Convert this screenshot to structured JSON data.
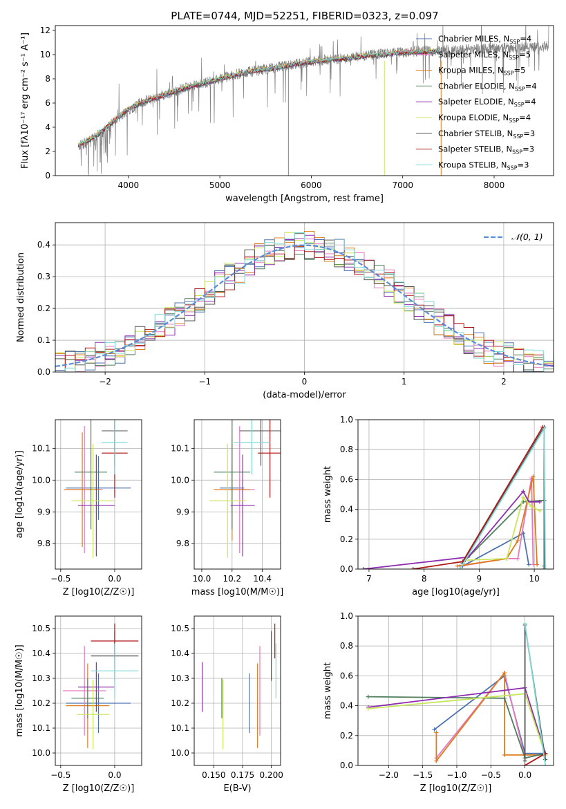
{
  "figure_title": "PLATE=0744, MJD=52251, FIBERID=0323, z=0.097",
  "colors": {
    "Chabrier MILES": "#4C72B0",
    "Salpeter MILES": "#e377c2",
    "Kroupa MILES": "#E07B1A",
    "Chabrier ELODIE": "#4F7F5A",
    "Salpeter ELODIE": "#8E2DB0",
    "Kroupa ELODIE": "#C8E65A",
    "Chabrier STELIB": "#555555",
    "Salpeter STELIB": "#B01818",
    "Kroupa STELIB": "#7FD9D5"
  },
  "chart_data": [
    {
      "id": "spectrum",
      "type": "line",
      "title": "PLATE=0744, MJD=52251, FIBERID=0323, z=0.097",
      "xlabel": "wavelength [Angstrom, rest frame]",
      "ylabel": "Flux [fλ10⁻¹⁷ erg cm⁻² s⁻¹ A⁻¹]",
      "xlim": [
        3200,
        8650
      ],
      "ylim": [
        0,
        12.4
      ],
      "xticks": [
        4000,
        5000,
        6000,
        7000,
        8000
      ],
      "yticks": [
        0,
        2,
        4,
        6,
        8,
        10,
        12
      ],
      "legend": [
        "Chabrier MILES, N_SSP=4",
        "Salpeter MILES, N_SSP=5",
        "Kroupa MILES, N_SSP=5",
        "Chabrier ELODIE, N_SSP=4",
        "Salpeter ELODIE, N_SSP=4",
        "Kroupa ELODIE, N_SSP=4",
        "Chabrier STELIB, N_SSP=3",
        "Salpeter STELIB, N_SSP=3",
        "Kroupa STELIB, N_SSP=3"
      ],
      "legend_loc": "right",
      "data_curve": {
        "x": [
          3450,
          3500,
          3600,
          3700,
          3800,
          3900,
          4000,
          4100,
          4200,
          4400,
          4600,
          4800,
          5000,
          5200,
          5400,
          5600,
          5800,
          6000,
          6200,
          6400,
          6600,
          6800,
          7000,
          7200,
          7400,
          7600,
          7800,
          8000,
          8200,
          8400,
          8600
        ],
        "y": [
          2.4,
          2.6,
          3.0,
          3.5,
          4.2,
          4.8,
          5.4,
          5.9,
          6.2,
          6.7,
          7.2,
          7.6,
          8.0,
          8.4,
          8.7,
          8.9,
          9.2,
          9.4,
          9.6,
          9.7,
          9.9,
          10.1,
          10.2,
          10.3,
          10.3,
          10.4,
          10.5,
          10.5,
          10.6,
          10.6,
          10.7
        ]
      },
      "model_curve": {
        "x": [
          3450,
          3500,
          3600,
          3700,
          3800,
          3900,
          4000,
          4100,
          4200,
          4400,
          4600,
          4800,
          5000,
          5200,
          5400,
          5600,
          5800,
          6000,
          6200,
          6400,
          6600,
          6800,
          7000,
          7200,
          7400
        ],
        "y": [
          2.5,
          2.7,
          3.1,
          3.6,
          4.3,
          4.9,
          5.5,
          5.9,
          6.2,
          6.7,
          7.2,
          7.6,
          8.0,
          8.4,
          8.7,
          8.9,
          9.2,
          9.4,
          9.6,
          9.7,
          9.9,
          10.0,
          10.2,
          10.2,
          10.3
        ]
      }
    },
    {
      "id": "residuals",
      "type": "line",
      "xlabel": "(data-model)/error",
      "ylabel": "Normed distribution",
      "xlim": [
        -2.5,
        2.5
      ],
      "ylim": [
        0,
        0.47
      ],
      "xticks": [
        -2,
        -1,
        0,
        1,
        2
      ],
      "yticks": [
        0.0,
        0.1,
        0.2,
        0.3,
        0.4
      ],
      "legend": [
        "N(0,1)"
      ],
      "legend_loc": "top-right",
      "bin_width": 0.1
    },
    {
      "id": "age_vs_Z",
      "type": "scatter",
      "xlabel": "Z [log10(Z/Z☉)]",
      "ylabel": "age  [log10(age/yr)]",
      "xlim": [
        -0.55,
        0.25
      ],
      "ylim": [
        9.72,
        10.19
      ],
      "xticks": [
        -0.5,
        0.0
      ],
      "yticks": [
        9.8,
        9.9,
        10.0,
        10.1
      ],
      "points": [
        {
          "model": "Chabrier MILES",
          "x": -0.15,
          "xerr": 0.3,
          "y": 9.975,
          "yerr": 0.1
        },
        {
          "model": "Salpeter MILES",
          "x": -0.28,
          "xerr": 0.17,
          "y": 9.97,
          "yerr": 0.2
        },
        {
          "model": "Kroupa MILES",
          "x": -0.3,
          "xerr": 0.17,
          "y": 9.97,
          "yerr": 0.18
        },
        {
          "model": "Chabrier ELODIE",
          "x": -0.22,
          "xerr": 0.15,
          "y": 10.025,
          "yerr": 0.18
        },
        {
          "model": "Salpeter ELODIE",
          "x": -0.17,
          "xerr": 0.17,
          "y": 9.92,
          "yerr": 0.16
        },
        {
          "model": "Kroupa ELODIE",
          "x": -0.2,
          "xerr": 0.2,
          "y": 9.935,
          "yerr": 0.18
        },
        {
          "model": "Chabrier STELIB",
          "x": 0.0,
          "xerr": 0.12,
          "y": 10.155,
          "yerr": 0.11
        },
        {
          "model": "Salpeter STELIB",
          "x": 0.0,
          "xerr": 0.12,
          "y": 10.085,
          "yerr": 0.14
        },
        {
          "model": "Kroupa STELIB",
          "x": 0.0,
          "xerr": 0.12,
          "y": 10.118,
          "yerr": 0.1
        }
      ]
    },
    {
      "id": "age_vs_mass",
      "type": "scatter",
      "xlabel": "mass [log10(M/M☉)]",
      "ylabel": "",
      "xlim": [
        9.95,
        10.52
      ],
      "ylim": [
        9.72,
        10.19
      ],
      "xticks": [
        10.0,
        10.2,
        10.4
      ],
      "yticks": [
        9.8,
        9.9,
        10.0,
        10.1
      ],
      "points": [
        {
          "model": "Chabrier MILES",
          "x": 10.2,
          "xerr": 0.08,
          "y": 9.975,
          "yerr": 0.08
        },
        {
          "model": "Salpeter MILES",
          "x": 10.25,
          "xerr": 0.1,
          "y": 9.97,
          "yerr": 0.2
        },
        {
          "model": "Kroupa MILES",
          "x": 10.2,
          "xerr": 0.12,
          "y": 9.97,
          "yerr": 0.16
        },
        {
          "model": "Chabrier ELODIE",
          "x": 10.2,
          "xerr": 0.12,
          "y": 10.025,
          "yerr": 0.18
        },
        {
          "model": "Salpeter ELODIE",
          "x": 10.27,
          "xerr": 0.08,
          "y": 9.92,
          "yerr": 0.16
        },
        {
          "model": "Kroupa ELODIE",
          "x": 10.17,
          "xerr": 0.12,
          "y": 9.935,
          "yerr": 0.18
        },
        {
          "model": "Chabrier STELIB",
          "x": 10.39,
          "xerr": 0.14,
          "y": 10.155,
          "yerr": 0.11
        },
        {
          "model": "Salpeter STELIB",
          "x": 10.45,
          "xerr": 0.08,
          "y": 10.085,
          "yerr": 0.14
        },
        {
          "model": "Kroupa STELIB",
          "x": 10.33,
          "xerr": 0.12,
          "y": 10.118,
          "yerr": 0.1
        }
      ]
    },
    {
      "id": "weight_vs_age",
      "type": "line",
      "xlabel": "age  [log10(age/yr)]",
      "ylabel": "mass weight",
      "xlim": [
        6.8,
        10.35
      ],
      "ylim": [
        0,
        1.0
      ],
      "xticks": [
        7,
        8,
        9,
        10
      ],
      "yticks": [
        0.0,
        0.2,
        0.4,
        0.6,
        0.8,
        1.0
      ],
      "series": [
        {
          "model": "Chabrier MILES",
          "x": [
            8.7,
            9.8,
            9.9
          ],
          "y": [
            0.02,
            0.24,
            0.03
          ]
        },
        {
          "model": "Salpeter MILES",
          "x": [
            8.65,
            9.5,
            9.7,
            9.95,
            9.98
          ],
          "y": [
            0.02,
            0.07,
            0.07,
            0.61,
            0.03
          ]
        },
        {
          "model": "Kroupa MILES",
          "x": [
            8.6,
            9.5,
            9.7,
            9.98,
            10.05
          ],
          "y": [
            0.02,
            0.07,
            0.19,
            0.62,
            0.03
          ]
        },
        {
          "model": "Chabrier ELODIE",
          "x": [
            8.75,
            9.8,
            10.18,
            10.18
          ],
          "y": [
            0.06,
            0.45,
            0.46,
            0.02
          ]
        },
        {
          "model": "Salpeter ELODIE",
          "x": [
            6.9,
            8.8,
            9.8,
            9.9,
            10.1
          ],
          "y": [
            0.0,
            0.08,
            0.52,
            0.45,
            0.45
          ]
        },
        {
          "model": "Kroupa ELODIE",
          "x": [
            8.8,
            9.5,
            9.8,
            9.95,
            10.1
          ],
          "y": [
            0.06,
            0.07,
            0.48,
            0.42,
            0.39
          ]
        },
        {
          "model": "Chabrier STELIB",
          "x": [
            8.7,
            10.18,
            10.18
          ],
          "y": [
            0.04,
            0.95,
            0.0
          ]
        },
        {
          "model": "Salpeter STELIB",
          "x": [
            7.8,
            8.7,
            10.15
          ],
          "y": [
            0.0,
            0.05,
            0.95
          ]
        },
        {
          "model": "Kroupa STELIB",
          "x": [
            8.65,
            10.18,
            10.2
          ],
          "y": [
            0.0,
            0.94,
            0.0
          ]
        }
      ]
    },
    {
      "id": "mass_vs_Z",
      "type": "scatter",
      "xlabel": "Z [log10(Z/Z☉)]",
      "ylabel": "mass [log10(M/M☉)]",
      "xlim": [
        -0.55,
        0.25
      ],
      "ylim": [
        9.95,
        10.55
      ],
      "xticks": [
        -0.5,
        0.0
      ],
      "yticks": [
        10.0,
        10.1,
        10.2,
        10.3,
        10.4,
        10.5
      ],
      "points": [
        {
          "model": "Chabrier MILES",
          "x": -0.15,
          "xerr": 0.3,
          "y": 10.2,
          "yerr": 0.12
        },
        {
          "model": "Salpeter MILES",
          "x": -0.28,
          "xerr": 0.2,
          "y": 10.25,
          "yerr": 0.18
        },
        {
          "model": "Kroupa MILES",
          "x": -0.25,
          "xerr": 0.2,
          "y": 10.19,
          "yerr": 0.17
        },
        {
          "model": "Chabrier ELODIE",
          "x": -0.25,
          "xerr": 0.15,
          "y": 10.22,
          "yerr": 0.08
        },
        {
          "model": "Salpeter ELODIE",
          "x": -0.17,
          "xerr": 0.17,
          "y": 10.265,
          "yerr": 0.1
        },
        {
          "model": "Kroupa ELODIE",
          "x": -0.2,
          "xerr": 0.15,
          "y": 10.155,
          "yerr": 0.14
        },
        {
          "model": "Chabrier STELIB",
          "x": 0.0,
          "xerr": 0.22,
          "y": 10.39,
          "yerr": 0.1
        },
        {
          "model": "Salpeter STELIB",
          "x": 0.0,
          "xerr": 0.22,
          "y": 10.45,
          "yerr": 0.07
        },
        {
          "model": "Kroupa STELIB",
          "x": 0.0,
          "xerr": 0.22,
          "y": 10.33,
          "yerr": 0.11
        }
      ]
    },
    {
      "id": "mass_vs_EBV",
      "type": "scatter",
      "xlabel": "E(B-V)",
      "ylabel": "",
      "xlim": [
        0.133,
        0.208
      ],
      "ylim": [
        9.95,
        10.55
      ],
      "xticks": [
        0.15,
        0.175,
        0.2
      ],
      "yticks": [
        10.0,
        10.1,
        10.2,
        10.3,
        10.4,
        10.5
      ],
      "points": [
        {
          "model": "Chabrier MILES",
          "x": 0.181,
          "y": 10.2,
          "yerr": 0.12
        },
        {
          "model": "Salpeter MILES",
          "x": 0.19,
          "y": 10.25,
          "yerr": 0.18
        },
        {
          "model": "Kroupa MILES",
          "x": 0.188,
          "y": 10.19,
          "yerr": 0.17
        },
        {
          "model": "Chabrier ELODIE",
          "x": 0.157,
          "y": 10.22,
          "yerr": 0.08
        },
        {
          "model": "Salpeter ELODIE",
          "x": 0.14,
          "y": 10.265,
          "yerr": 0.1
        },
        {
          "model": "Kroupa ELODIE",
          "x": 0.158,
          "y": 10.155,
          "yerr": 0.14
        },
        {
          "model": "Chabrier STELIB",
          "x": 0.2,
          "y": 10.39,
          "yerr": 0.1
        },
        {
          "model": "Salpeter STELIB",
          "x": 0.203,
          "y": 10.45,
          "yerr": 0.07
        },
        {
          "model": "Kroupa STELIB",
          "x": 0.204,
          "y": 10.33,
          "yerr": 0.11
        }
      ]
    },
    {
      "id": "weight_vs_Z",
      "type": "line",
      "xlabel": "Z [log10(Z/Z☉)]",
      "ylabel": "mass weight",
      "xlim": [
        -2.45,
        0.42
      ],
      "ylim": [
        0,
        1.0
      ],
      "xticks": [
        -2.0,
        -1.5,
        -1.0,
        -0.5,
        0.0
      ],
      "yticks": [
        0.0,
        0.2,
        0.4,
        0.6,
        0.8,
        1.0
      ],
      "series": [
        {
          "model": "Chabrier MILES",
          "x": [
            -1.33,
            -0.3,
            0.0,
            0.3
          ],
          "y": [
            0.24,
            0.6,
            0.08,
            0.08
          ]
        },
        {
          "model": "Salpeter MILES",
          "x": [
            -1.3,
            -0.3,
            0.0,
            0.3
          ],
          "y": [
            0.05,
            0.62,
            0.05,
            0.08
          ]
        },
        {
          "model": "Kroupa MILES",
          "x": [
            -1.3,
            -1.3,
            -0.3,
            -0.3,
            0.3
          ],
          "y": [
            0.22,
            0.03,
            0.62,
            0.07,
            0.07
          ]
        },
        {
          "model": "Chabrier ELODIE",
          "x": [
            -2.3,
            -0.3,
            0.0,
            0.3
          ],
          "y": [
            0.46,
            0.45,
            0.05,
            0.08
          ]
        },
        {
          "model": "Salpeter ELODIE",
          "x": [
            -2.3,
            0.0,
            0.3
          ],
          "y": [
            0.39,
            0.52,
            0.08
          ]
        },
        {
          "model": "Kroupa ELODIE",
          "x": [
            -2.3,
            0.0,
            0.3
          ],
          "y": [
            0.38,
            0.48,
            0.07
          ]
        },
        {
          "model": "Chabrier STELIB",
          "x": [
            0.0,
            0.0,
            0.3
          ],
          "y": [
            0.03,
            0.94,
            0.04
          ]
        },
        {
          "model": "Salpeter STELIB",
          "x": [
            0.0,
            0.3
          ],
          "y": [
            0.0,
            0.08
          ]
        },
        {
          "model": "Kroupa STELIB",
          "x": [
            0.0,
            0.3
          ],
          "y": [
            0.95,
            0.0
          ]
        }
      ]
    }
  ]
}
